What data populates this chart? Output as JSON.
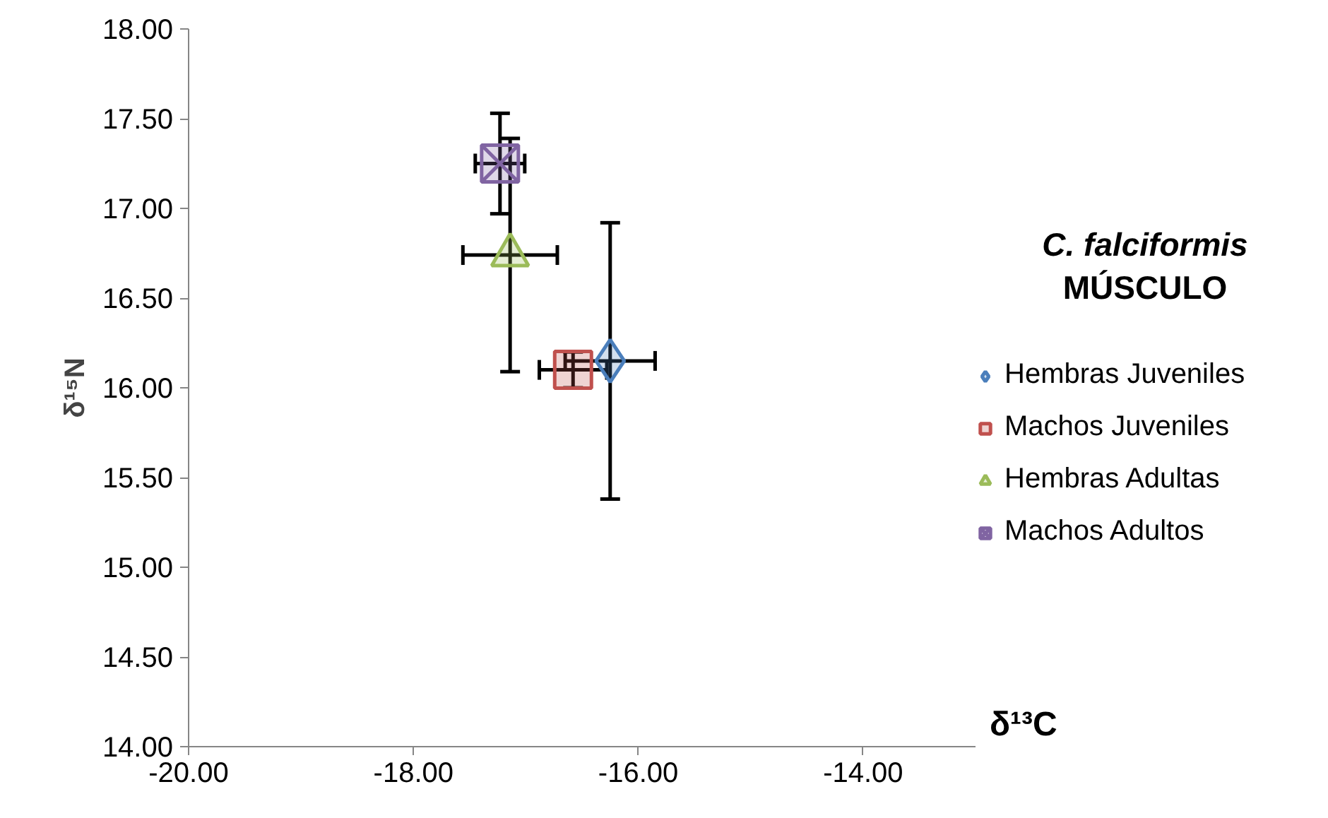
{
  "chart_data": {
    "type": "scatter",
    "title": "C. falciformis",
    "subtitle": "MÚSCULO",
    "xlabel": "δ¹³C",
    "ylabel": "δ¹⁵N",
    "xlim": [
      -20,
      -13
    ],
    "ylim": [
      14,
      18
    ],
    "xticks": [
      {
        "value": -20,
        "label": "-20.00"
      },
      {
        "value": -18,
        "label": "-18.00"
      },
      {
        "value": -16,
        "label": "-16.00"
      },
      {
        "value": -14,
        "label": "-14.00"
      }
    ],
    "yticks": [
      {
        "value": 14,
        "label": "14.00"
      },
      {
        "value": 14.5,
        "label": "14.50"
      },
      {
        "value": 15,
        "label": "15.00"
      },
      {
        "value": 15.5,
        "label": "15.50"
      },
      {
        "value": 16,
        "label": "16.00"
      },
      {
        "value": 16.5,
        "label": "16.50"
      },
      {
        "value": 17,
        "label": "17.00"
      },
      {
        "value": 17.5,
        "label": "17.50"
      },
      {
        "value": 18,
        "label": "18.00"
      }
    ],
    "grid": false,
    "legend": "right",
    "series": [
      {
        "name": "Hembras Juveniles",
        "color": "#4a7ebb",
        "marker": "diamond",
        "x": [
          -16.25
        ],
        "values": [
          16.15
        ],
        "errors": [
          0.77
        ],
        "xerrors": [
          0.4
        ]
      },
      {
        "name": "Machos Juveniles",
        "color": "#c0504d",
        "marker": "square",
        "x": [
          -16.58
        ],
        "values": [
          16.1
        ],
        "errors": [
          0.1
        ],
        "xerrors": [
          0.3
        ]
      },
      {
        "name": "Hembras Adultas",
        "color": "#9bbb59",
        "marker": "triangle",
        "x": [
          -17.14
        ],
        "values": [
          16.74
        ],
        "errors": [
          0.65
        ],
        "xerrors": [
          0.42
        ]
      },
      {
        "name": "Machos Adultos",
        "color": "#8064a2",
        "marker": "square_x",
        "x": [
          -17.23
        ],
        "values": [
          17.25
        ],
        "errors": [
          0.28
        ],
        "xerrors": [
          0.22
        ]
      }
    ]
  }
}
